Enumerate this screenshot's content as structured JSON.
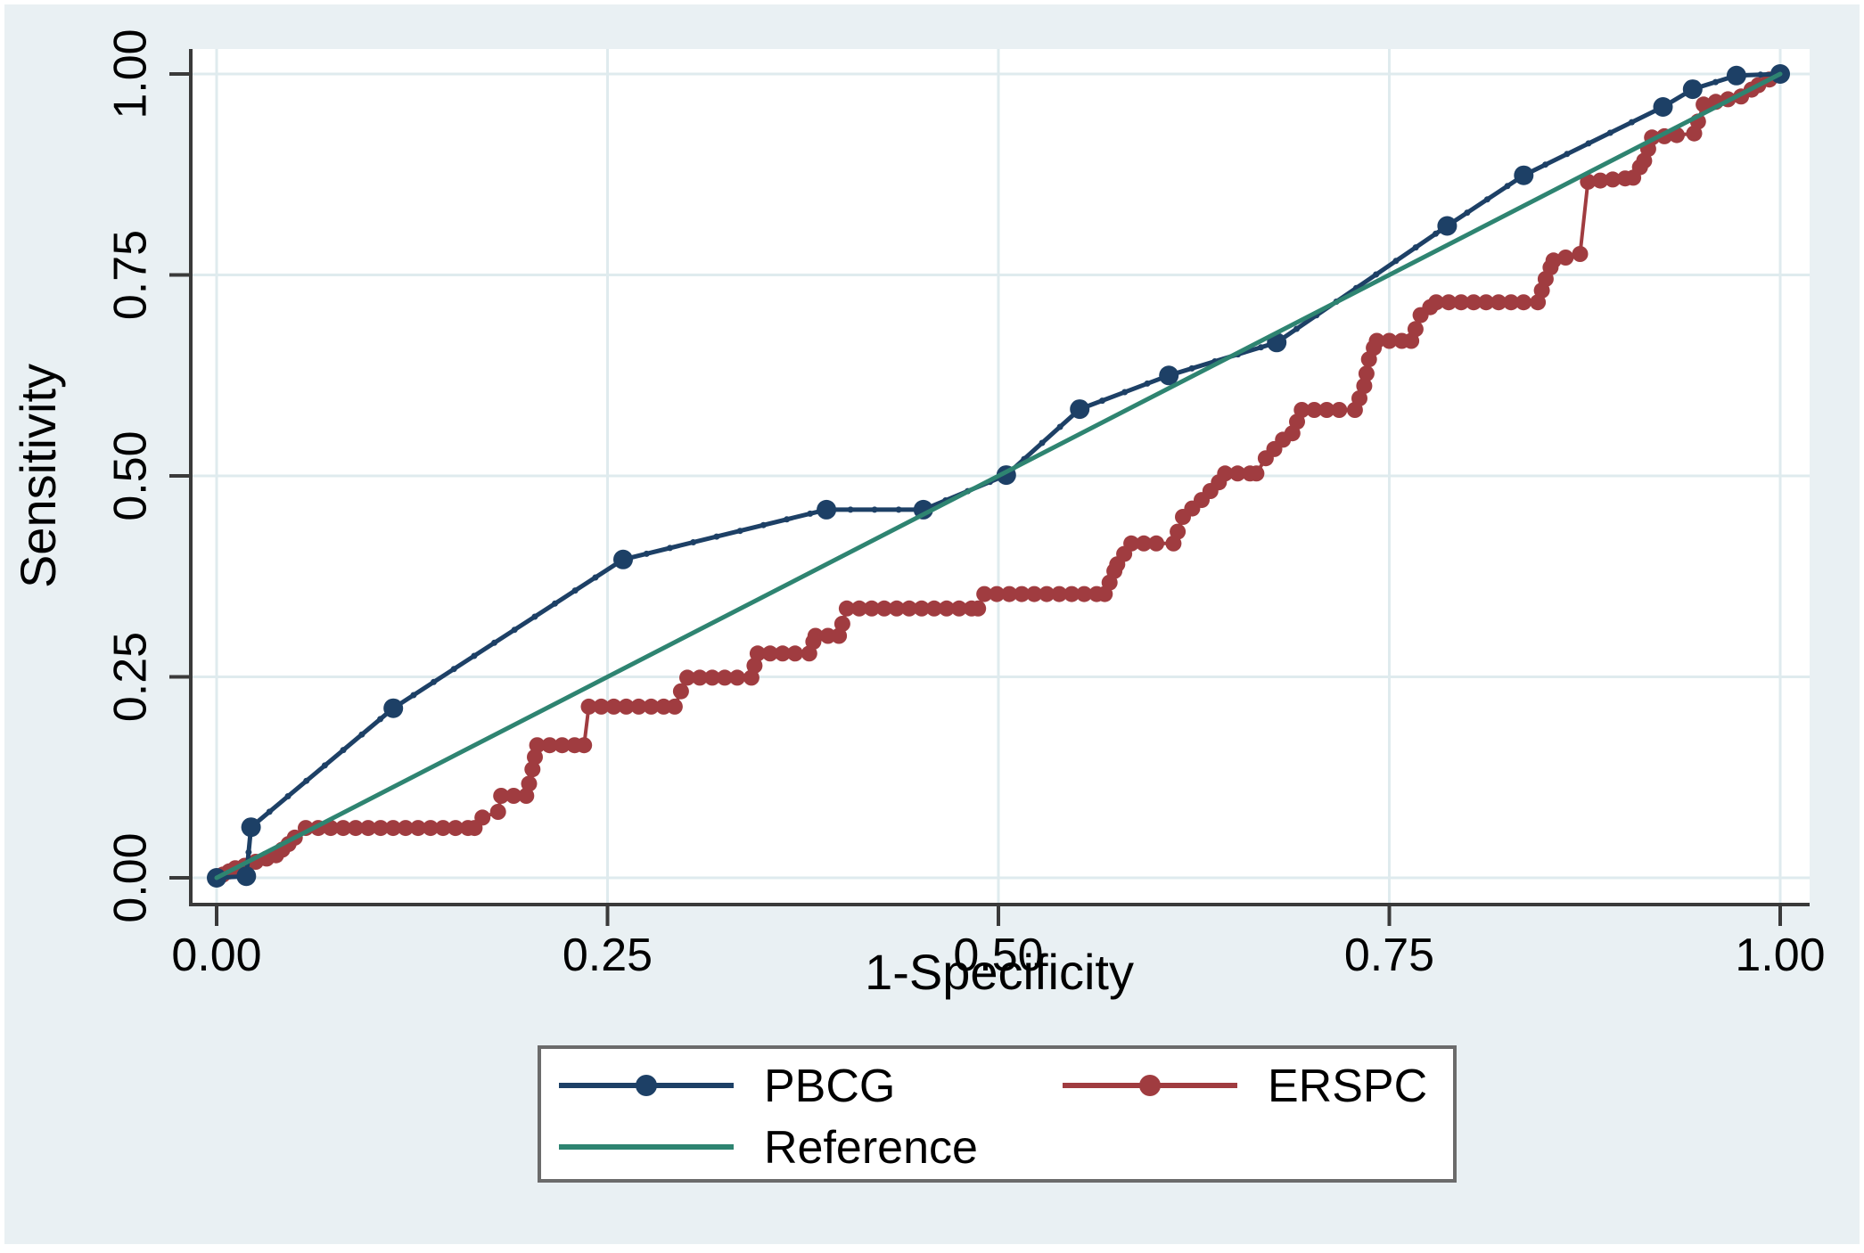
{
  "figure": {
    "background": "#e9f0f3",
    "plot_background": "#ffffff",
    "grid_color": "#dfebee",
    "axis_color": "#3a3a3a",
    "text_color": "#000000",
    "frame_color": "#ffffff"
  },
  "axes": {
    "x_title": "1-Specificity",
    "y_title": "Sensitivity",
    "x_tick_labels": [
      "0.00",
      "0.25",
      "0.50",
      "0.75",
      "1.00"
    ],
    "y_tick_labels": [
      "0.00",
      "0.25",
      "0.50",
      "0.75",
      "1.00"
    ]
  },
  "legend": {
    "background": "#ffffff",
    "border_color": "#6b6b6b",
    "entries": [
      {
        "label": "PBCG",
        "color": "#1d4066",
        "marker": "circle"
      },
      {
        "label": "ERSPC",
        "color": "#a03c40",
        "marker": "circle"
      },
      {
        "label": "Reference",
        "color": "#2e8471",
        "marker": "none"
      }
    ]
  },
  "chart_data": {
    "type": "line",
    "title": "",
    "xlabel": "1-Specificity",
    "ylabel": "Sensitivity",
    "xlim": [
      0,
      1
    ],
    "ylim": [
      0,
      1
    ],
    "x_tick_values": [
      0,
      0.25,
      0.5,
      0.75,
      1
    ],
    "y_tick_values": [
      0,
      0.25,
      0.5,
      0.75,
      1
    ],
    "grid": true,
    "legend_position": "bottom",
    "series": [
      {
        "name": "PBCG",
        "color": "#1d4066",
        "style": "line-with-markers",
        "points": [
          [
            0.0,
            0.0
          ],
          [
            0.019,
            0.002
          ],
          [
            0.022,
            0.063
          ],
          [
            0.113,
            0.211
          ],
          [
            0.26,
            0.396
          ],
          [
            0.39,
            0.458
          ],
          [
            0.452,
            0.458
          ],
          [
            0.505,
            0.501
          ],
          [
            0.552,
            0.583
          ],
          [
            0.609,
            0.625
          ],
          [
            0.678,
            0.666
          ],
          [
            0.787,
            0.811
          ],
          [
            0.836,
            0.874
          ],
          [
            0.925,
            0.959
          ],
          [
            0.944,
            0.981
          ],
          [
            0.972,
            0.998
          ],
          [
            1.0,
            1.0
          ]
        ]
      },
      {
        "name": "ERSPC",
        "color": "#a03c40",
        "style": "step-dense-markers",
        "points": [
          [
            0.0,
            0.0
          ],
          [
            0.004,
            0.004
          ],
          [
            0.008,
            0.008
          ],
          [
            0.012,
            0.012
          ],
          [
            0.018,
            0.015
          ],
          [
            0.025,
            0.02
          ],
          [
            0.032,
            0.024
          ],
          [
            0.038,
            0.028
          ],
          [
            0.042,
            0.035
          ],
          [
            0.046,
            0.042
          ],
          [
            0.05,
            0.05
          ],
          [
            0.057,
            0.062
          ],
          [
            0.165,
            0.062
          ],
          [
            0.17,
            0.075
          ],
          [
            0.18,
            0.082
          ],
          [
            0.182,
            0.102
          ],
          [
            0.198,
            0.102
          ],
          [
            0.202,
            0.135
          ],
          [
            0.205,
            0.165
          ],
          [
            0.235,
            0.165
          ],
          [
            0.238,
            0.213
          ],
          [
            0.293,
            0.213
          ],
          [
            0.297,
            0.232
          ],
          [
            0.301,
            0.249
          ],
          [
            0.342,
            0.249
          ],
          [
            0.346,
            0.279
          ],
          [
            0.379,
            0.279
          ],
          [
            0.383,
            0.301
          ],
          [
            0.398,
            0.301
          ],
          [
            0.403,
            0.335
          ],
          [
            0.487,
            0.335
          ],
          [
            0.491,
            0.353
          ],
          [
            0.568,
            0.353
          ],
          [
            0.576,
            0.39
          ],
          [
            0.585,
            0.416
          ],
          [
            0.612,
            0.416
          ],
          [
            0.618,
            0.449
          ],
          [
            0.63,
            0.47
          ],
          [
            0.641,
            0.492
          ],
          [
            0.645,
            0.503
          ],
          [
            0.665,
            0.503
          ],
          [
            0.671,
            0.522
          ],
          [
            0.682,
            0.545
          ],
          [
            0.688,
            0.553
          ],
          [
            0.694,
            0.582
          ],
          [
            0.728,
            0.582
          ],
          [
            0.734,
            0.612
          ],
          [
            0.737,
            0.645
          ],
          [
            0.742,
            0.668
          ],
          [
            0.764,
            0.668
          ],
          [
            0.77,
            0.7
          ],
          [
            0.78,
            0.716
          ],
          [
            0.845,
            0.716
          ],
          [
            0.85,
            0.745
          ],
          [
            0.855,
            0.768
          ],
          [
            0.872,
            0.776
          ],
          [
            0.877,
            0.866
          ],
          [
            0.906,
            0.871
          ],
          [
            0.913,
            0.892
          ],
          [
            0.918,
            0.921
          ],
          [
            0.945,
            0.926
          ],
          [
            0.951,
            0.962
          ],
          [
            0.975,
            0.972
          ],
          [
            0.986,
            0.986
          ],
          [
            1.0,
            1.0
          ]
        ]
      },
      {
        "name": "Reference",
        "color": "#2e8471",
        "style": "line",
        "points": [
          [
            0,
            0
          ],
          [
            1,
            1
          ]
        ]
      }
    ]
  }
}
